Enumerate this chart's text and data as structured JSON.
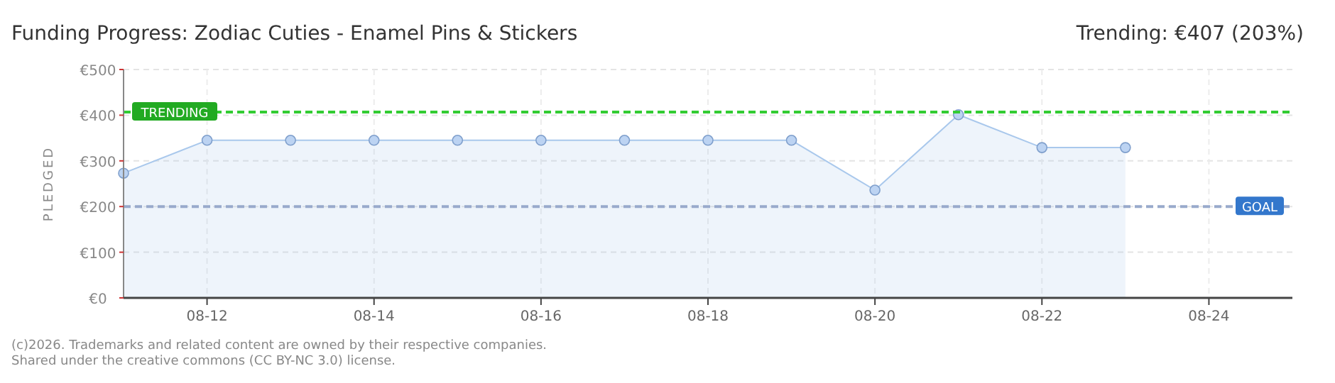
{
  "chart_data": {
    "type": "area",
    "title": "Funding Progress: Zodiac Cuties - Enamel Pins & Stickers",
    "subtitle": "Trending: €407 (203%)",
    "ylabel": "PLEDGED",
    "x": [
      "--08-11",
      "--08-12",
      "--08-13",
      "--08-14",
      "--08-15",
      "--08-16",
      "--08-17",
      "--08-18",
      "--08-19",
      "--08-20",
      "--08-21",
      "--08-22",
      "--08-23"
    ],
    "series": [
      {
        "color": "#a9c8ec",
        "values": [
          273,
          345,
          345,
          345,
          345,
          345,
          345,
          345,
          345,
          236,
          401,
          329,
          329
        ]
      }
    ],
    "xlim": [
      "--08-11",
      "--08-25"
    ],
    "xticks": [
      {
        "value": "--08-12",
        "label": "08-12"
      },
      {
        "value": "--08-14",
        "label": "08-14"
      },
      {
        "value": "--08-16",
        "label": "08-16"
      },
      {
        "value": "--08-18",
        "label": "08-18"
      },
      {
        "value": "--08-20",
        "label": "08-20"
      },
      {
        "value": "--08-22",
        "label": "08-22"
      },
      {
        "value": "--08-24",
        "label": "08-24"
      }
    ],
    "ylim": [
      0,
      500
    ],
    "yticks": [
      {
        "value": 0,
        "label": "€0"
      },
      {
        "value": 100,
        "label": "€100"
      },
      {
        "value": 200,
        "label": "€200"
      },
      {
        "value": 300,
        "label": "€300"
      },
      {
        "value": 400,
        "label": "€400"
      },
      {
        "value": 500,
        "label": "€500"
      }
    ],
    "ref_lines": [
      {
        "axis": "y",
        "value": 407,
        "label": "TRENDING",
        "color": "#33cc33",
        "line_style": "dashed"
      },
      {
        "axis": "y",
        "value": 200,
        "label": "GOAL",
        "color": "#99aacc",
        "line_style": "dashed"
      }
    ],
    "grid": true,
    "marker": "circle",
    "annotations": [
      "(c)2026. Trademarks and related content are owned by their respective companies.",
      "Shared under the creative commons (CC BY-NC 3.0) license."
    ]
  }
}
